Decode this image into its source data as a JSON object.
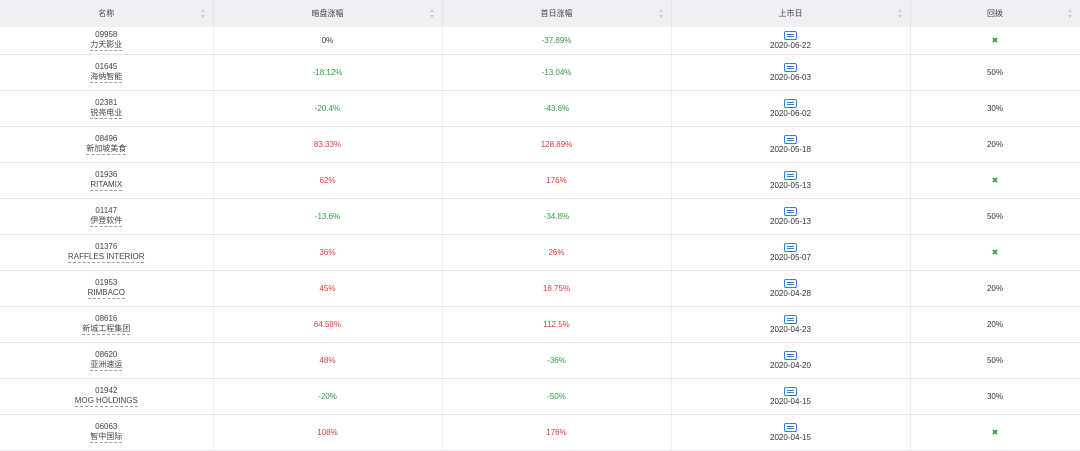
{
  "header": {
    "name": "名称",
    "dark_change": "暗盘涨幅",
    "first_day_change": "首日涨幅",
    "listing_date": "上市日",
    "callback": "回拨"
  },
  "rows": [
    {
      "code": "09958",
      "name": "力天影业",
      "dark": "0%",
      "dark_dir": "flat",
      "first": "-37.89%",
      "first_dir": "down",
      "date": "2020-06-22",
      "callback": "✖",
      "callback_is_icon": true
    },
    {
      "code": "01645",
      "name": "海纳智能",
      "dark": "-18.12%",
      "dark_dir": "down",
      "first": "-13.04%",
      "first_dir": "down",
      "date": "2020-06-03",
      "callback": "50%",
      "callback_is_icon": false
    },
    {
      "code": "02381",
      "name": "锐亮电业",
      "dark": "-20.4%",
      "dark_dir": "down",
      "first": "-43.6%",
      "first_dir": "down",
      "date": "2020-06-02",
      "callback": "30%",
      "callback_is_icon": false
    },
    {
      "code": "08496",
      "name": "新加坡美食",
      "dark": "83.33%",
      "dark_dir": "up",
      "first": "128.89%",
      "first_dir": "up",
      "date": "2020-05-18",
      "callback": "20%",
      "callback_is_icon": false
    },
    {
      "code": "01936",
      "name": "RITAMIX",
      "dark": "62%",
      "dark_dir": "up",
      "first": "176%",
      "first_dir": "up",
      "date": "2020-05-13",
      "callback": "✖",
      "callback_is_icon": true
    },
    {
      "code": "01147",
      "name": "伊登软件",
      "dark": "-13.6%",
      "dark_dir": "down",
      "first": "-34.8%",
      "first_dir": "down",
      "date": "2020-05-13",
      "callback": "50%",
      "callback_is_icon": false
    },
    {
      "code": "01376",
      "name": "RAFFLES INTERIOR",
      "dark": "36%",
      "dark_dir": "up",
      "first": "26%",
      "first_dir": "up",
      "date": "2020-05-07",
      "callback": "✖",
      "callback_is_icon": true
    },
    {
      "code": "01953",
      "name": "RIMBACO",
      "dark": "45%",
      "dark_dir": "up",
      "first": "18.75%",
      "first_dir": "up",
      "date": "2020-04-28",
      "callback": "20%",
      "callback_is_icon": false
    },
    {
      "code": "08616",
      "name": "新城工程集团",
      "dark": "64.58%",
      "dark_dir": "up",
      "first": "112.5%",
      "first_dir": "up",
      "date": "2020-04-23",
      "callback": "20%",
      "callback_is_icon": false
    },
    {
      "code": "08620",
      "name": "亚洲速运",
      "dark": "48%",
      "dark_dir": "up",
      "first": "-36%",
      "first_dir": "down",
      "date": "2020-04-20",
      "callback": "50%",
      "callback_is_icon": false
    },
    {
      "code": "01942",
      "name": "MOG HOLDINGS",
      "dark": "-20%",
      "dark_dir": "down",
      "first": "-50%",
      "first_dir": "down",
      "date": "2020-04-15",
      "callback": "30%",
      "callback_is_icon": false
    },
    {
      "code": "06063",
      "name": "智中国际",
      "dark": "108%",
      "dark_dir": "up",
      "first": "176%",
      "first_dir": "up",
      "date": "2020-04-15",
      "callback": "✖",
      "callback_is_icon": true
    }
  ],
  "icons": {
    "calendar": "calendar-icon",
    "not_applicable": "cross-icon"
  },
  "colors": {
    "up": "#e0393e",
    "down": "#2ea043",
    "header_bg": "#eef0f3",
    "calendar": "#3a7bd5"
  }
}
